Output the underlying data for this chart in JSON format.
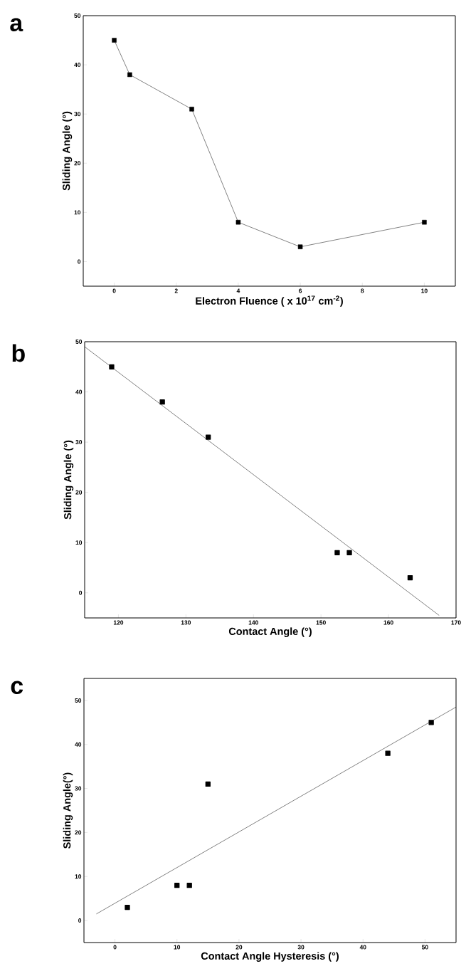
{
  "chart_data": [
    {
      "type": "line",
      "annotations": [
        "a"
      ],
      "xlabel": "Electron Fluence ( x 10$^{17}$ cm$^{-2}$)",
      "ylabel": "Sliding Angle (°)",
      "marker": "square",
      "color": "#000000",
      "x": [
        0,
        0.5,
        2.5,
        4,
        6,
        10
      ],
      "values": [
        45,
        38,
        31,
        8,
        3,
        8
      ],
      "xlim": [
        -1,
        11
      ],
      "ylim": [
        -5,
        50
      ],
      "xticks": [
        0,
        2,
        4,
        6,
        8,
        10
      ],
      "yticks": [
        0,
        10,
        20,
        30,
        40,
        50
      ]
    },
    {
      "type": "scatter",
      "annotations": [
        "b"
      ],
      "xlabel": "Contact Angle (°)",
      "ylabel": "Sliding Angle (°)",
      "marker": "square",
      "series": [
        {
          "type": "scatter",
          "color": "#000000",
          "x": [
            119,
            126.5,
            133.3,
            152.4,
            154.2,
            163.2
          ],
          "values": [
            45,
            38,
            31,
            8,
            8,
            3
          ]
        },
        {
          "type": "line",
          "marker": "none",
          "color": "#000000",
          "x": [
            115,
            167.5
          ],
          "values": [
            49,
            -4.5
          ]
        }
      ],
      "xlim": [
        115,
        170
      ],
      "ylim": [
        -5,
        50
      ],
      "xticks": [
        120,
        130,
        140,
        150,
        160,
        170
      ],
      "yticks": [
        0,
        10,
        20,
        30,
        40,
        50
      ]
    },
    {
      "type": "scatter",
      "annotations": [
        "c"
      ],
      "xlabel": "Contact Angle Hysteresis (°)",
      "ylabel": "Sliding Angle(°)",
      "marker": "square",
      "series": [
        {
          "type": "scatter",
          "color": "#000000",
          "x": [
            2,
            10,
            12,
            15,
            44,
            51
          ],
          "values": [
            3,
            8,
            8,
            31,
            38,
            45
          ]
        },
        {
          "type": "line",
          "marker": "none",
          "color": "#000000",
          "x": [
            -3,
            55
          ],
          "values": [
            1.5,
            48.5
          ]
        }
      ],
      "xlim": [
        -5,
        55
      ],
      "ylim": [
        -5,
        55
      ],
      "xticks": [
        0,
        10,
        20,
        30,
        40,
        50
      ],
      "yticks": [
        0,
        10,
        20,
        30,
        40,
        50
      ]
    }
  ]
}
